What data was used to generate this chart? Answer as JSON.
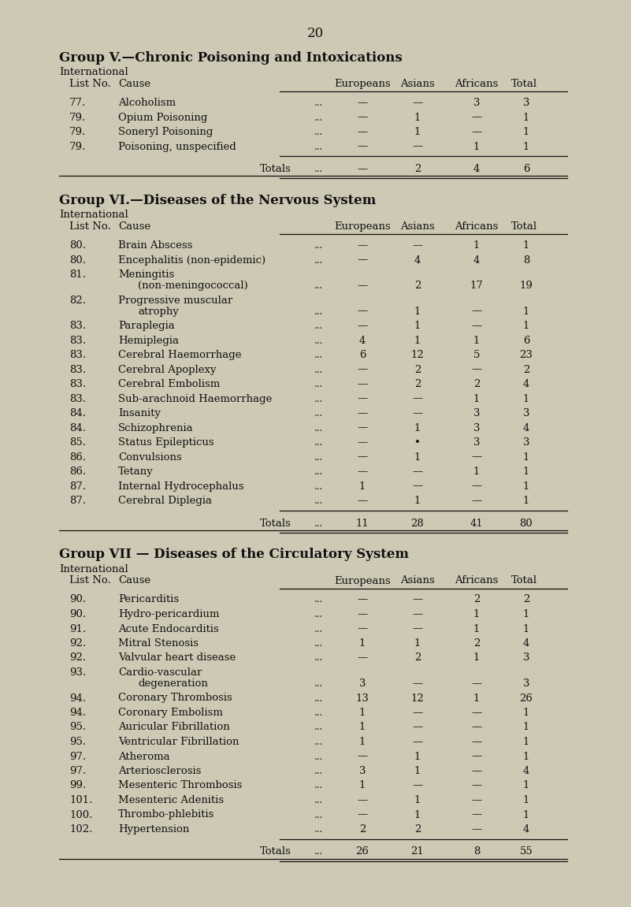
{
  "page_number": "20",
  "bg_color": "#cec9b4",
  "text_color": "#111111",
  "groups": [
    {
      "title": "Group V.—Chronic Poisoning and Intoxications",
      "col_headers": [
        "Europeans",
        "Asians",
        "Africans",
        "Total"
      ],
      "rows": [
        {
          "num": "77.",
          "cause": "Alcoholism",
          "cause2": "",
          "euros": "—",
          "asians": "—",
          "africans": "3",
          "total": "3"
        },
        {
          "num": "79.",
          "cause": "Opium Poisoning",
          "cause2": "",
          "euros": "—",
          "asians": "1",
          "africans": "—",
          "total": "1"
        },
        {
          "num": "79.",
          "cause": "Soneryl Poisoning",
          "cause2": "",
          "euros": "—",
          "asians": "1",
          "africans": "—",
          "total": "1"
        },
        {
          "num": "79.",
          "cause": "Poisoning, unspecified",
          "cause2": "",
          "euros": "—",
          "asians": "—",
          "africans": "1",
          "total": "1"
        }
      ],
      "totals": [
        "—",
        "2",
        "4",
        "6"
      ]
    },
    {
      "title": "Group VI.—Diseases of the Nervous System",
      "col_headers": [
        "Europeans",
        "Asians",
        "Africans",
        "Total"
      ],
      "rows": [
        {
          "num": "80.",
          "cause": "Brain Abscess",
          "cause2": "",
          "euros": "—",
          "asians": "—",
          "africans": "1",
          "total": "1"
        },
        {
          "num": "80.",
          "cause": "Encephalitis (non-epidemic)",
          "cause2": "",
          "euros": "—",
          "asians": "4",
          "africans": "4",
          "total": "8"
        },
        {
          "num": "81.",
          "cause": "Meningitis",
          "cause2": "(non-meningococcal)",
          "euros": "—",
          "asians": "2",
          "africans": "17",
          "total": "19"
        },
        {
          "num": "82.",
          "cause": "Progressive muscular",
          "cause2": "atrophy",
          "euros": "—",
          "asians": "1",
          "africans": "—",
          "total": "1"
        },
        {
          "num": "83.",
          "cause": "Paraplegia",
          "cause2": "",
          "euros": "—",
          "asians": "1",
          "africans": "—",
          "total": "1"
        },
        {
          "num": "83.",
          "cause": "Hemiplegia",
          "cause2": "",
          "euros": "4",
          "asians": "1",
          "africans": "1",
          "total": "6"
        },
        {
          "num": "83.",
          "cause": "Cerebral Haemorrhage",
          "cause2": "",
          "euros": "6",
          "asians": "12",
          "africans": "5",
          "total": "23"
        },
        {
          "num": "83.",
          "cause": "Cerebral Apoplexy",
          "cause2": "",
          "euros": "—",
          "asians": "2",
          "africans": "—",
          "total": "2"
        },
        {
          "num": "83.",
          "cause": "Cerebral Embolism",
          "cause2": "",
          "euros": "—",
          "asians": "2",
          "africans": "2",
          "total": "4"
        },
        {
          "num": "83.",
          "cause": "Sub-arachnoid Haemorrhage",
          "cause2": "",
          "euros": "—",
          "asians": "—",
          "africans": "1",
          "total": "1"
        },
        {
          "num": "84.",
          "cause": "Insanity",
          "cause2": "",
          "euros": "—",
          "asians": "—",
          "africans": "3",
          "total": "3"
        },
        {
          "num": "84.",
          "cause": "Schizophrenia",
          "cause2": "",
          "euros": "—",
          "asians": "1",
          "africans": "3",
          "total": "4"
        },
        {
          "num": "85.",
          "cause": "Status Epilepticus",
          "cause2": "",
          "euros": "—",
          "asians": "•",
          "africans": "3",
          "total": "3"
        },
        {
          "num": "86.",
          "cause": "Convulsions",
          "cause2": "",
          "euros": "—",
          "asians": "1",
          "africans": "—",
          "total": "1"
        },
        {
          "num": "86.",
          "cause": "Tetany",
          "cause2": "",
          "euros": "—",
          "asians": "—",
          "africans": "1",
          "total": "1"
        },
        {
          "num": "87.",
          "cause": "Internal Hydrocephalus",
          "cause2": "",
          "euros": "1",
          "asians": "—",
          "africans": "—",
          "total": "1"
        },
        {
          "num": "87.",
          "cause": "Cerebral Diplegia",
          "cause2": "",
          "euros": "—",
          "asians": "1",
          "africans": "—",
          "total": "1"
        }
      ],
      "totals": [
        "11",
        "28",
        "41",
        "80"
      ]
    },
    {
      "title": "Group VII — Diseases of the Circulatory System",
      "col_headers": [
        "Europeans",
        "Asians",
        "Africans",
        "Total"
      ],
      "rows": [
        {
          "num": "90.",
          "cause": "Pericarditis",
          "cause2": "",
          "euros": "—",
          "asians": "—",
          "africans": "2",
          "total": "2"
        },
        {
          "num": "90.",
          "cause": "Hydro-pericardium",
          "cause2": "",
          "euros": "—",
          "asians": "—",
          "africans": "1",
          "total": "1"
        },
        {
          "num": "91.",
          "cause": "Acute Endocarditis",
          "cause2": "",
          "euros": "—",
          "asians": "—",
          "africans": "1",
          "total": "1"
        },
        {
          "num": "92.",
          "cause": "Mitral Stenosis",
          "cause2": "",
          "euros": "1",
          "asians": "1",
          "africans": "2",
          "total": "4"
        },
        {
          "num": "92.",
          "cause": "Valvular heart disease",
          "cause2": "",
          "euros": "—",
          "asians": "2",
          "africans": "1",
          "total": "3"
        },
        {
          "num": "93.",
          "cause": "Cardio-vascular",
          "cause2": "degeneration",
          "euros": "3",
          "asians": "—",
          "africans": "—",
          "total": "3"
        },
        {
          "num": "94.",
          "cause": "Coronary Thrombosis",
          "cause2": "",
          "euros": "13",
          "asians": "12",
          "africans": "1",
          "total": "26"
        },
        {
          "num": "94.",
          "cause": "Coronary Embolism",
          "cause2": "",
          "euros": "1",
          "asians": "—",
          "africans": "—",
          "total": "1"
        },
        {
          "num": "95.",
          "cause": "Auricular Fibrillation",
          "cause2": "",
          "euros": "1",
          "asians": "—",
          "africans": "—",
          "total": "1"
        },
        {
          "num": "95.",
          "cause": "Ventricular Fibrillation",
          "cause2": "",
          "euros": "1",
          "asians": "—",
          "africans": "—",
          "total": "1"
        },
        {
          "num": "97.",
          "cause": "Atheroma",
          "cause2": "",
          "euros": "—",
          "asians": "1",
          "africans": "—",
          "total": "1"
        },
        {
          "num": "97.",
          "cause": "Arteriosclerosis",
          "cause2": "",
          "euros": "3",
          "asians": "1",
          "africans": "—",
          "total": "4"
        },
        {
          "num": "99.",
          "cause": "Mesenteric Thrombosis",
          "cause2": "",
          "euros": "1",
          "asians": "—",
          "africans": "—",
          "total": "1"
        },
        {
          "num": "101.",
          "cause": "Mesenteric Adenitis",
          "cause2": "",
          "euros": "—",
          "asians": "1",
          "africans": "—",
          "total": "1"
        },
        {
          "num": "100.",
          "cause": "Thrombo-phlebitis",
          "cause2": "",
          "euros": "—",
          "asians": "1",
          "africans": "—",
          "total": "1"
        },
        {
          "num": "102.",
          "cause": "Hypertension",
          "cause2": "",
          "euros": "2",
          "asians": "2",
          "africans": "—",
          "total": "4"
        }
      ],
      "totals": [
        "26",
        "21",
        "8",
        "55"
      ]
    }
  ]
}
